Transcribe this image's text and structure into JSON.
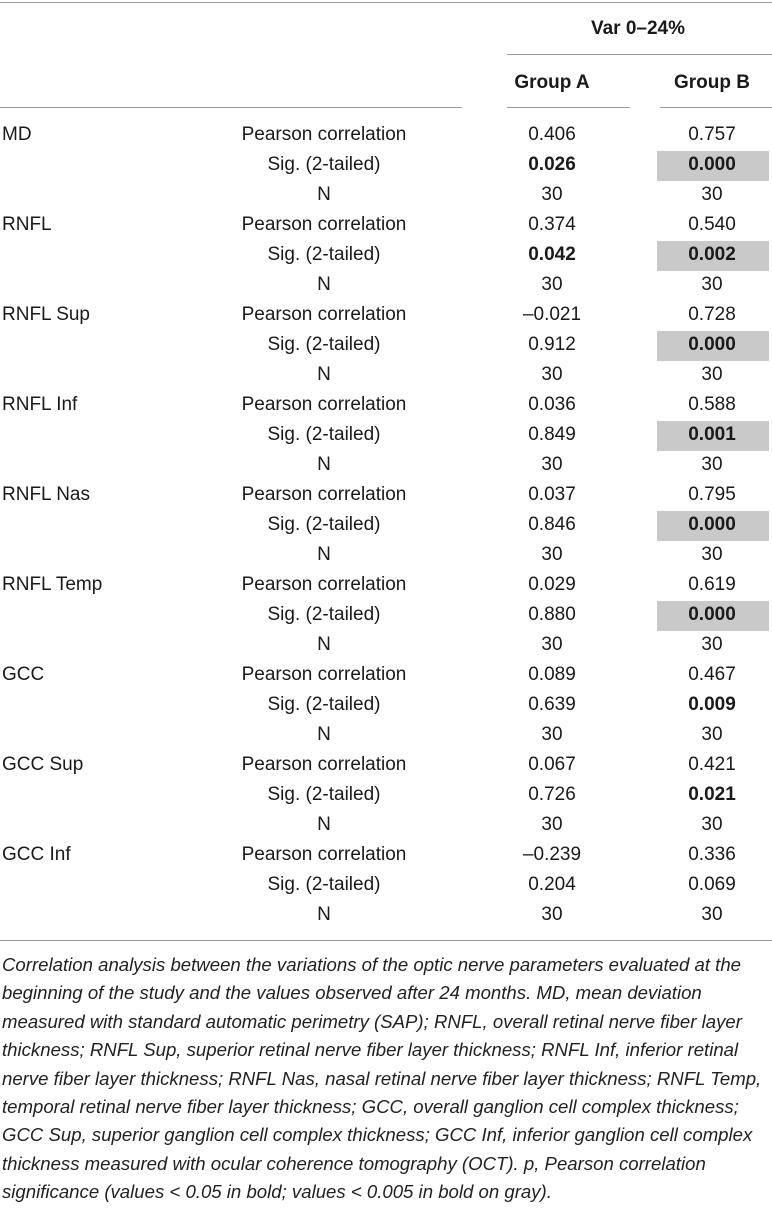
{
  "table": {
    "spanning_header": "Var 0–24%",
    "group_a": "Group A",
    "group_b": "Group B",
    "rows": [
      {
        "param": "MD",
        "stats": [
          {
            "label": "Pearson correlation",
            "a": "0.406",
            "b": "0.757",
            "a_bold": false,
            "b_bold": false,
            "b_gray": false
          },
          {
            "label": "Sig. (2-tailed)",
            "a": "0.026",
            "b": "0.000",
            "a_bold": true,
            "b_bold": true,
            "b_gray": true
          },
          {
            "label": "N",
            "a": "30",
            "b": "30",
            "a_bold": false,
            "b_bold": false,
            "b_gray": false
          }
        ]
      },
      {
        "param": "RNFL",
        "stats": [
          {
            "label": "Pearson correlation",
            "a": "0.374",
            "b": "0.540",
            "a_bold": false,
            "b_bold": false,
            "b_gray": false
          },
          {
            "label": "Sig. (2-tailed)",
            "a": "0.042",
            "b": "0.002",
            "a_bold": true,
            "b_bold": true,
            "b_gray": true
          },
          {
            "label": "N",
            "a": "30",
            "b": "30",
            "a_bold": false,
            "b_bold": false,
            "b_gray": false
          }
        ]
      },
      {
        "param": "RNFL Sup",
        "stats": [
          {
            "label": "Pearson correlation",
            "a": "–0.021",
            "b": "0.728",
            "a_bold": false,
            "b_bold": false,
            "b_gray": false
          },
          {
            "label": "Sig. (2-tailed)",
            "a": "0.912",
            "b": "0.000",
            "a_bold": false,
            "b_bold": true,
            "b_gray": true
          },
          {
            "label": "N",
            "a": "30",
            "b": "30",
            "a_bold": false,
            "b_bold": false,
            "b_gray": false
          }
        ]
      },
      {
        "param": "RNFL Inf",
        "stats": [
          {
            "label": "Pearson correlation",
            "a": "0.036",
            "b": "0.588",
            "a_bold": false,
            "b_bold": false,
            "b_gray": false
          },
          {
            "label": "Sig. (2-tailed)",
            "a": "0.849",
            "b": "0.001",
            "a_bold": false,
            "b_bold": true,
            "b_gray": true
          },
          {
            "label": "N",
            "a": "30",
            "b": "30",
            "a_bold": false,
            "b_bold": false,
            "b_gray": false
          }
        ]
      },
      {
        "param": "RNFL Nas",
        "stats": [
          {
            "label": "Pearson correlation",
            "a": "0.037",
            "b": "0.795",
            "a_bold": false,
            "b_bold": false,
            "b_gray": false
          },
          {
            "label": "Sig. (2-tailed)",
            "a": "0.846",
            "b": "0.000",
            "a_bold": false,
            "b_bold": true,
            "b_gray": true
          },
          {
            "label": "N",
            "a": "30",
            "b": "30",
            "a_bold": false,
            "b_bold": false,
            "b_gray": false
          }
        ]
      },
      {
        "param": "RNFL Temp",
        "stats": [
          {
            "label": "Pearson correlation",
            "a": "0.029",
            "b": "0.619",
            "a_bold": false,
            "b_bold": false,
            "b_gray": false
          },
          {
            "label": "Sig. (2-tailed)",
            "a": "0.880",
            "b": "0.000",
            "a_bold": false,
            "b_bold": true,
            "b_gray": true
          },
          {
            "label": "N",
            "a": "30",
            "b": "30",
            "a_bold": false,
            "b_bold": false,
            "b_gray": false
          }
        ]
      },
      {
        "param": "GCC",
        "stats": [
          {
            "label": "Pearson correlation",
            "a": "0.089",
            "b": "0.467",
            "a_bold": false,
            "b_bold": false,
            "b_gray": false
          },
          {
            "label": "Sig. (2-tailed)",
            "a": "0.639",
            "b": "0.009",
            "a_bold": false,
            "b_bold": true,
            "b_gray": false
          },
          {
            "label": "N",
            "a": "30",
            "b": "30",
            "a_bold": false,
            "b_bold": false,
            "b_gray": false
          }
        ]
      },
      {
        "param": "GCC Sup",
        "stats": [
          {
            "label": "Pearson correlation",
            "a": "0.067",
            "b": "0.421",
            "a_bold": false,
            "b_bold": false,
            "b_gray": false
          },
          {
            "label": "Sig. (2-tailed)",
            "a": "0.726",
            "b": "0.021",
            "a_bold": false,
            "b_bold": true,
            "b_gray": false
          },
          {
            "label": "N",
            "a": "30",
            "b": "30",
            "a_bold": false,
            "b_bold": false,
            "b_gray": false
          }
        ]
      },
      {
        "param": "GCC Inf",
        "stats": [
          {
            "label": "Pearson correlation",
            "a": "–0.239",
            "b": "0.336",
            "a_bold": false,
            "b_bold": false,
            "b_gray": false
          },
          {
            "label": "Sig. (2-tailed)",
            "a": "0.204",
            "b": "0.069",
            "a_bold": false,
            "b_bold": false,
            "b_gray": false
          },
          {
            "label": "N",
            "a": "30",
            "b": "30",
            "a_bold": false,
            "b_bold": false,
            "b_gray": false
          }
        ]
      }
    ]
  },
  "caption": "Correlation analysis between the variations of the optic nerve parameters evaluated at the beginning of the study and the values observed after 24 months. MD, mean deviation measured with standard automatic perimetry (SAP); RNFL, overall retinal nerve fiber layer thickness; RNFL Sup, superior retinal nerve fiber layer thickness; RNFL Inf, inferior retinal nerve fiber layer thickness; RNFL Nas, nasal retinal nerve fiber layer thickness; RNFL Temp, temporal retinal nerve fiber layer thickness; GCC, overall ganglion cell complex thickness; GCC Sup, superior ganglion cell complex thickness; GCC Inf, inferior ganglion cell complex thickness measured with ocular coherence tomography (OCT). p, Pearson correlation significance (values < 0.05 in bold; values < 0.005 in bold on gray)."
}
